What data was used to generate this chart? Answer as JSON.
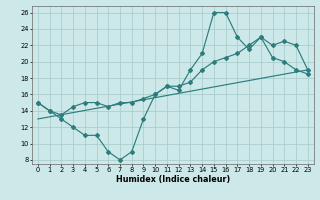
{
  "xlabel": "Humidex (Indice chaleur)",
  "bg_color": "#cde8e8",
  "line_color": "#2e7d7d",
  "grid_color": "#a8cccc",
  "xlim": [
    -0.5,
    23.5
  ],
  "ylim": [
    7.5,
    26.8
  ],
  "xticks": [
    0,
    1,
    2,
    3,
    4,
    5,
    6,
    7,
    8,
    9,
    10,
    11,
    12,
    13,
    14,
    15,
    16,
    17,
    18,
    19,
    20,
    21,
    22,
    23
  ],
  "yticks": [
    8,
    10,
    12,
    14,
    16,
    18,
    20,
    22,
    24,
    26
  ],
  "line1_x": [
    0,
    1,
    2,
    3,
    4,
    5,
    6,
    7,
    8,
    9,
    10,
    11,
    12,
    13,
    14,
    15,
    16,
    17,
    18,
    19,
    20,
    21,
    22,
    23
  ],
  "line1_y": [
    15.0,
    14.0,
    13.0,
    12.0,
    11.0,
    11.0,
    9.0,
    8.0,
    9.0,
    13.0,
    16.0,
    17.0,
    16.5,
    19.0,
    21.0,
    26.0,
    26.0,
    23.0,
    21.5,
    23.0,
    20.5,
    20.0,
    19.0,
    18.5
  ],
  "line2_x": [
    0,
    1,
    2,
    3,
    4,
    5,
    6,
    7,
    8,
    9,
    10,
    11,
    12,
    13,
    14,
    15,
    16,
    17,
    18,
    19,
    20,
    21,
    22,
    23
  ],
  "line2_y": [
    15.0,
    14.0,
    13.5,
    14.5,
    15.0,
    15.0,
    14.5,
    15.0,
    15.0,
    15.5,
    16.0,
    17.0,
    17.0,
    17.5,
    19.0,
    20.0,
    20.5,
    21.0,
    22.0,
    23.0,
    22.0,
    22.5,
    22.0,
    19.0
  ],
  "line3_x": [
    0,
    23
  ],
  "line3_y": [
    13.0,
    19.0
  ]
}
